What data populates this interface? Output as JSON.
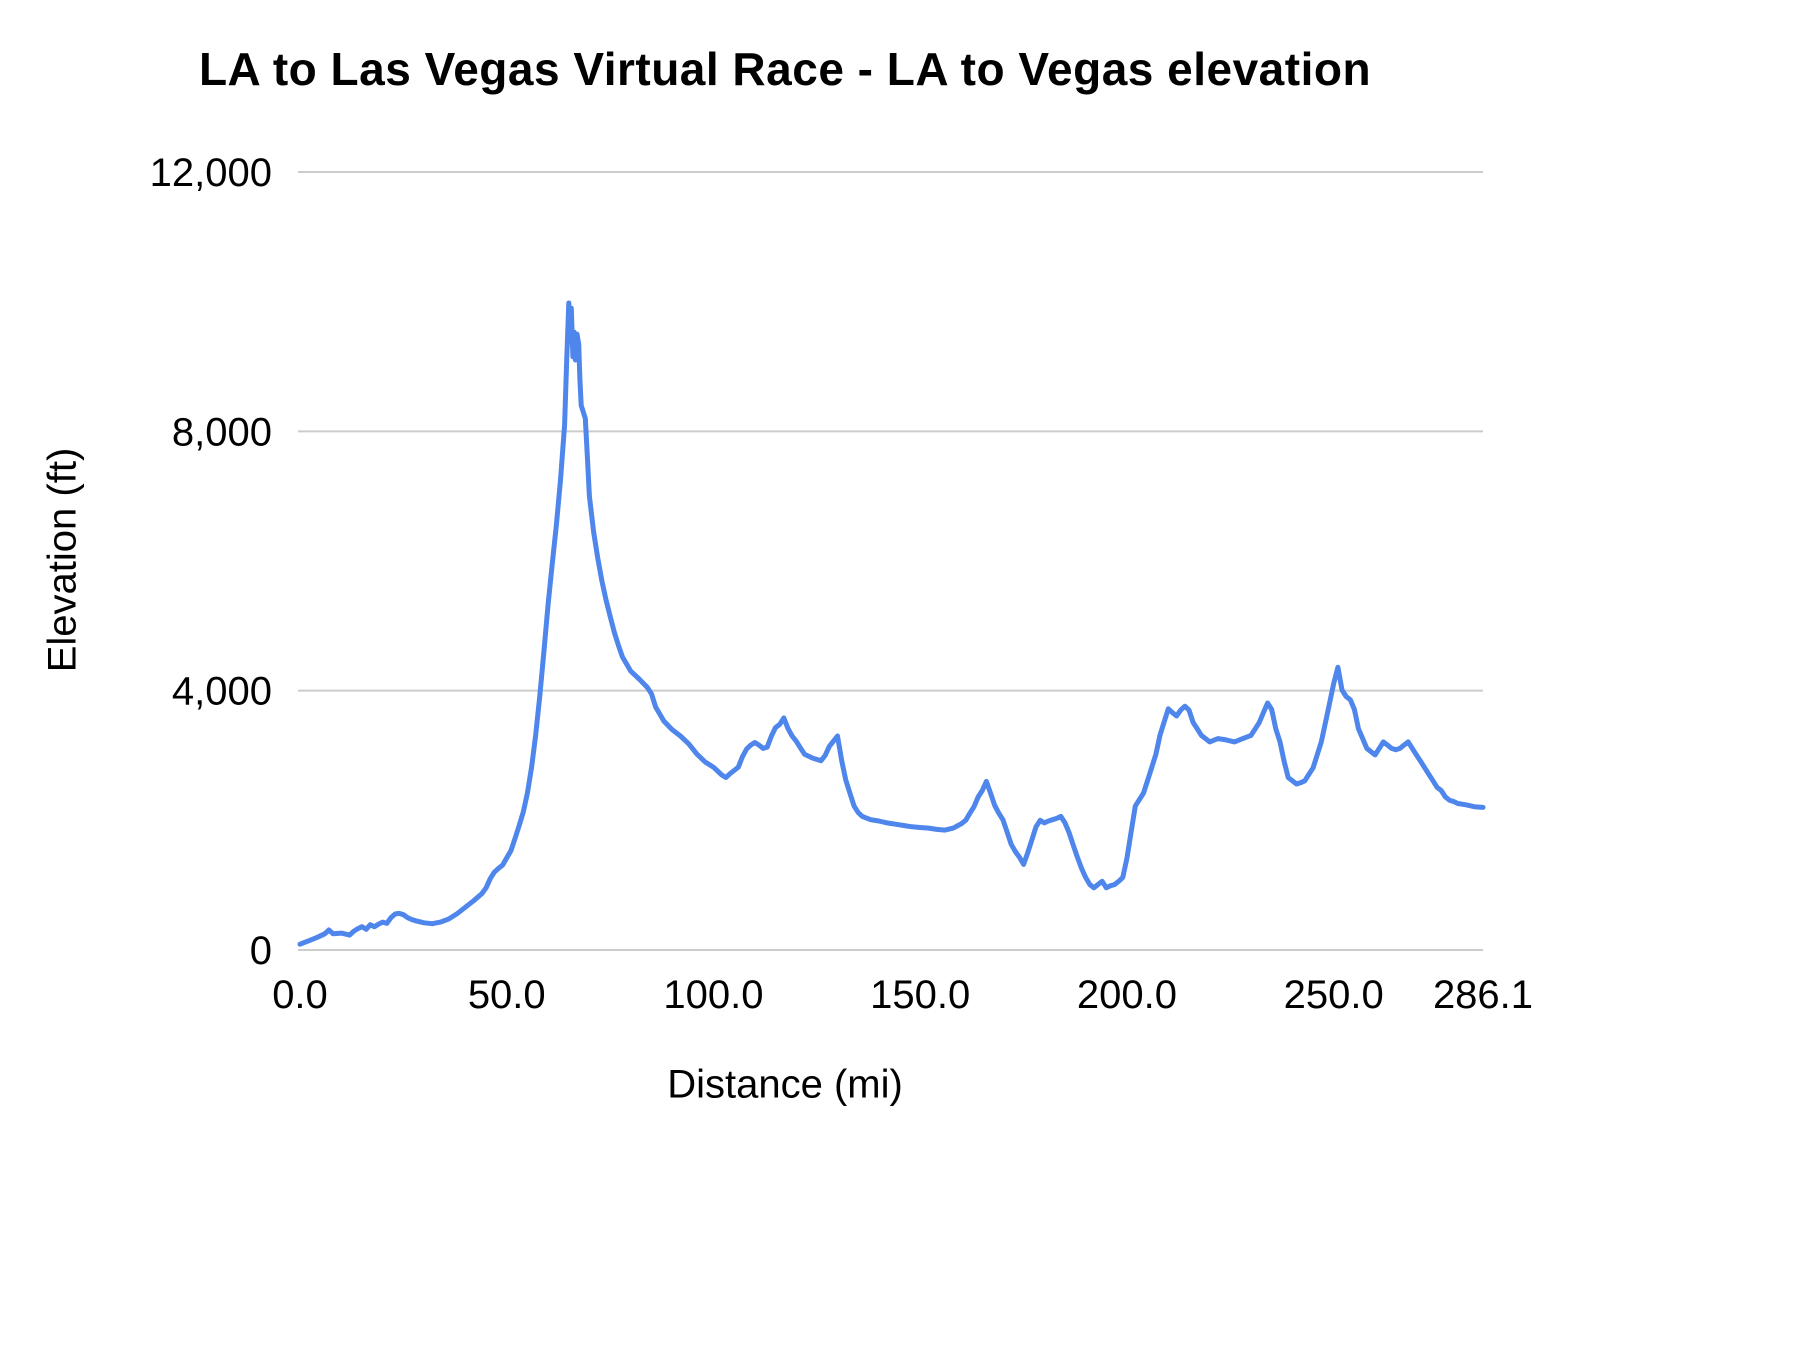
{
  "chart_data": {
    "type": "line",
    "title": "LA to Las Vegas Virtual Race - LA to Vegas elevation",
    "xlabel": "Distance (mi)",
    "ylabel": "Elevation (ft)",
    "xlim": [
      0,
      286.1
    ],
    "ylim": [
      0,
      12000
    ],
    "grid": true,
    "legend": "none",
    "line_color": "#4e86ec",
    "grid_color": "#cccccc",
    "xticks": {
      "values": [
        0,
        50,
        100,
        150,
        200,
        250,
        286.1
      ],
      "labels": [
        "0.0",
        "50.0",
        "100.0",
        "150.0",
        "200.0",
        "250.0",
        "286.1"
      ]
    },
    "yticks": {
      "values": [
        0,
        4000,
        8000,
        12000
      ],
      "labels": [
        "0",
        "4,000",
        "8,000",
        "12,000"
      ]
    },
    "series": [
      {
        "name": "Elevation",
        "points": [
          [
            0,
            90
          ],
          [
            2,
            140
          ],
          [
            4,
            190
          ],
          [
            6,
            250
          ],
          [
            7,
            310
          ],
          [
            8,
            250
          ],
          [
            10,
            260
          ],
          [
            12,
            230
          ],
          [
            13,
            290
          ],
          [
            14,
            330
          ],
          [
            15,
            360
          ],
          [
            16,
            320
          ],
          [
            17,
            390
          ],
          [
            18,
            360
          ],
          [
            19,
            400
          ],
          [
            20,
            430
          ],
          [
            21,
            410
          ],
          [
            22,
            500
          ],
          [
            23,
            555
          ],
          [
            24,
            565
          ],
          [
            25,
            545
          ],
          [
            26,
            500
          ],
          [
            27,
            470
          ],
          [
            28,
            450
          ],
          [
            30,
            420
          ],
          [
            32,
            405
          ],
          [
            34,
            430
          ],
          [
            36,
            480
          ],
          [
            38,
            560
          ],
          [
            40,
            660
          ],
          [
            42,
            760
          ],
          [
            44,
            870
          ],
          [
            45,
            960
          ],
          [
            46,
            1100
          ],
          [
            47,
            1200
          ],
          [
            48,
            1260
          ],
          [
            49,
            1310
          ],
          [
            50,
            1420
          ],
          [
            51,
            1530
          ],
          [
            52,
            1720
          ],
          [
            53,
            1920
          ],
          [
            54,
            2130
          ],
          [
            55,
            2420
          ],
          [
            56,
            2820
          ],
          [
            57,
            3320
          ],
          [
            58,
            3920
          ],
          [
            59,
            4620
          ],
          [
            60,
            5330
          ],
          [
            61,
            5950
          ],
          [
            62,
            6560
          ],
          [
            63,
            7250
          ],
          [
            64,
            8100
          ],
          [
            64.5,
            9100
          ],
          [
            65,
            9980
          ],
          [
            65.3,
            9380
          ],
          [
            65.6,
            9900
          ],
          [
            66,
            9150
          ],
          [
            66.3,
            9530
          ],
          [
            66.6,
            9100
          ],
          [
            67,
            9500
          ],
          [
            67.4,
            9350
          ],
          [
            67.7,
            8800
          ],
          [
            68,
            8400
          ],
          [
            68.5,
            8300
          ],
          [
            69,
            8200
          ],
          [
            69.5,
            7600
          ],
          [
            70,
            7000
          ],
          [
            71,
            6450
          ],
          [
            72,
            6050
          ],
          [
            73,
            5700
          ],
          [
            74,
            5400
          ],
          [
            75,
            5150
          ],
          [
            76,
            4900
          ],
          [
            77,
            4700
          ],
          [
            78,
            4520
          ],
          [
            80,
            4300
          ],
          [
            82,
            4180
          ],
          [
            84,
            4050
          ],
          [
            85,
            3950
          ],
          [
            86,
            3750
          ],
          [
            88,
            3530
          ],
          [
            90,
            3400
          ],
          [
            92,
            3300
          ],
          [
            94,
            3180
          ],
          [
            96,
            3020
          ],
          [
            98,
            2900
          ],
          [
            100,
            2820
          ],
          [
            102,
            2700
          ],
          [
            103,
            2660
          ],
          [
            104,
            2720
          ],
          [
            106,
            2820
          ],
          [
            107,
            2980
          ],
          [
            108,
            3100
          ],
          [
            109,
            3160
          ],
          [
            110,
            3200
          ],
          [
            111,
            3160
          ],
          [
            112,
            3110
          ],
          [
            113,
            3130
          ],
          [
            114,
            3300
          ],
          [
            115,
            3430
          ],
          [
            116,
            3480
          ],
          [
            117,
            3580
          ],
          [
            118,
            3420
          ],
          [
            119,
            3300
          ],
          [
            120,
            3220
          ],
          [
            121,
            3120
          ],
          [
            122,
            3020
          ],
          [
            124,
            2960
          ],
          [
            126,
            2920
          ],
          [
            127,
            3000
          ],
          [
            128,
            3140
          ],
          [
            129,
            3220
          ],
          [
            130,
            3300
          ],
          [
            131,
            2920
          ],
          [
            132,
            2620
          ],
          [
            133,
            2420
          ],
          [
            134,
            2220
          ],
          [
            135,
            2120
          ],
          [
            136,
            2060
          ],
          [
            138,
            2010
          ],
          [
            140,
            1990
          ],
          [
            142,
            1960
          ],
          [
            144,
            1940
          ],
          [
            146,
            1920
          ],
          [
            148,
            1900
          ],
          [
            150,
            1890
          ],
          [
            152,
            1880
          ],
          [
            154,
            1860
          ],
          [
            156,
            1850
          ],
          [
            158,
            1880
          ],
          [
            160,
            1950
          ],
          [
            161,
            2000
          ],
          [
            162,
            2110
          ],
          [
            163,
            2210
          ],
          [
            164,
            2360
          ],
          [
            165,
            2460
          ],
          [
            166,
            2600
          ],
          [
            167,
            2420
          ],
          [
            168,
            2230
          ],
          [
            169,
            2110
          ],
          [
            170,
            2010
          ],
          [
            171,
            1820
          ],
          [
            172,
            1630
          ],
          [
            173,
            1520
          ],
          [
            174,
            1430
          ],
          [
            175,
            1320
          ],
          [
            176,
            1500
          ],
          [
            177,
            1700
          ],
          [
            178,
            1900
          ],
          [
            179,
            2000
          ],
          [
            180,
            1960
          ],
          [
            181,
            1990
          ],
          [
            182,
            2010
          ],
          [
            183,
            2030
          ],
          [
            184,
            2060
          ],
          [
            185,
            1960
          ],
          [
            186,
            1810
          ],
          [
            187,
            1620
          ],
          [
            188,
            1430
          ],
          [
            189,
            1260
          ],
          [
            190,
            1120
          ],
          [
            191,
            1010
          ],
          [
            192,
            960
          ],
          [
            193,
            1010
          ],
          [
            194,
            1060
          ],
          [
            195,
            960
          ],
          [
            196,
            990
          ],
          [
            197,
            1010
          ],
          [
            198,
            1060
          ],
          [
            199,
            1120
          ],
          [
            200,
            1420
          ],
          [
            201,
            1820
          ],
          [
            202,
            2220
          ],
          [
            203,
            2320
          ],
          [
            204,
            2420
          ],
          [
            205,
            2620
          ],
          [
            206,
            2820
          ],
          [
            207,
            3020
          ],
          [
            208,
            3320
          ],
          [
            209,
            3520
          ],
          [
            210,
            3720
          ],
          [
            211,
            3660
          ],
          [
            212,
            3610
          ],
          [
            213,
            3700
          ],
          [
            214,
            3760
          ],
          [
            215,
            3700
          ],
          [
            216,
            3510
          ],
          [
            217,
            3410
          ],
          [
            218,
            3310
          ],
          [
            219,
            3260
          ],
          [
            220,
            3210
          ],
          [
            222,
            3260
          ],
          [
            224,
            3240
          ],
          [
            226,
            3210
          ],
          [
            228,
            3260
          ],
          [
            230,
            3310
          ],
          [
            231,
            3410
          ],
          [
            232,
            3510
          ],
          [
            233,
            3660
          ],
          [
            234,
            3810
          ],
          [
            235,
            3710
          ],
          [
            236,
            3410
          ],
          [
            237,
            3210
          ],
          [
            238,
            2910
          ],
          [
            239,
            2660
          ],
          [
            240,
            2610
          ],
          [
            241,
            2560
          ],
          [
            242,
            2580
          ],
          [
            243,
            2610
          ],
          [
            244,
            2710
          ],
          [
            245,
            2810
          ],
          [
            246,
            3010
          ],
          [
            247,
            3210
          ],
          [
            248,
            3510
          ],
          [
            249,
            3810
          ],
          [
            250,
            4110
          ],
          [
            251,
            4360
          ],
          [
            252,
            4010
          ],
          [
            253,
            3910
          ],
          [
            254,
            3860
          ],
          [
            255,
            3710
          ],
          [
            256,
            3410
          ],
          [
            257,
            3260
          ],
          [
            258,
            3110
          ],
          [
            259,
            3060
          ],
          [
            260,
            3010
          ],
          [
            261,
            3110
          ],
          [
            262,
            3210
          ],
          [
            263,
            3160
          ],
          [
            264,
            3110
          ],
          [
            265,
            3090
          ],
          [
            266,
            3110
          ],
          [
            267,
            3160
          ],
          [
            268,
            3210
          ],
          [
            269,
            3110
          ],
          [
            270,
            3010
          ],
          [
            271,
            2910
          ],
          [
            272,
            2810
          ],
          [
            273,
            2710
          ],
          [
            274,
            2610
          ],
          [
            275,
            2510
          ],
          [
            276,
            2460
          ],
          [
            277,
            2360
          ],
          [
            278,
            2310
          ],
          [
            279,
            2290
          ],
          [
            280,
            2260
          ],
          [
            282,
            2240
          ],
          [
            284,
            2210
          ],
          [
            286.1,
            2200
          ]
        ]
      }
    ]
  }
}
